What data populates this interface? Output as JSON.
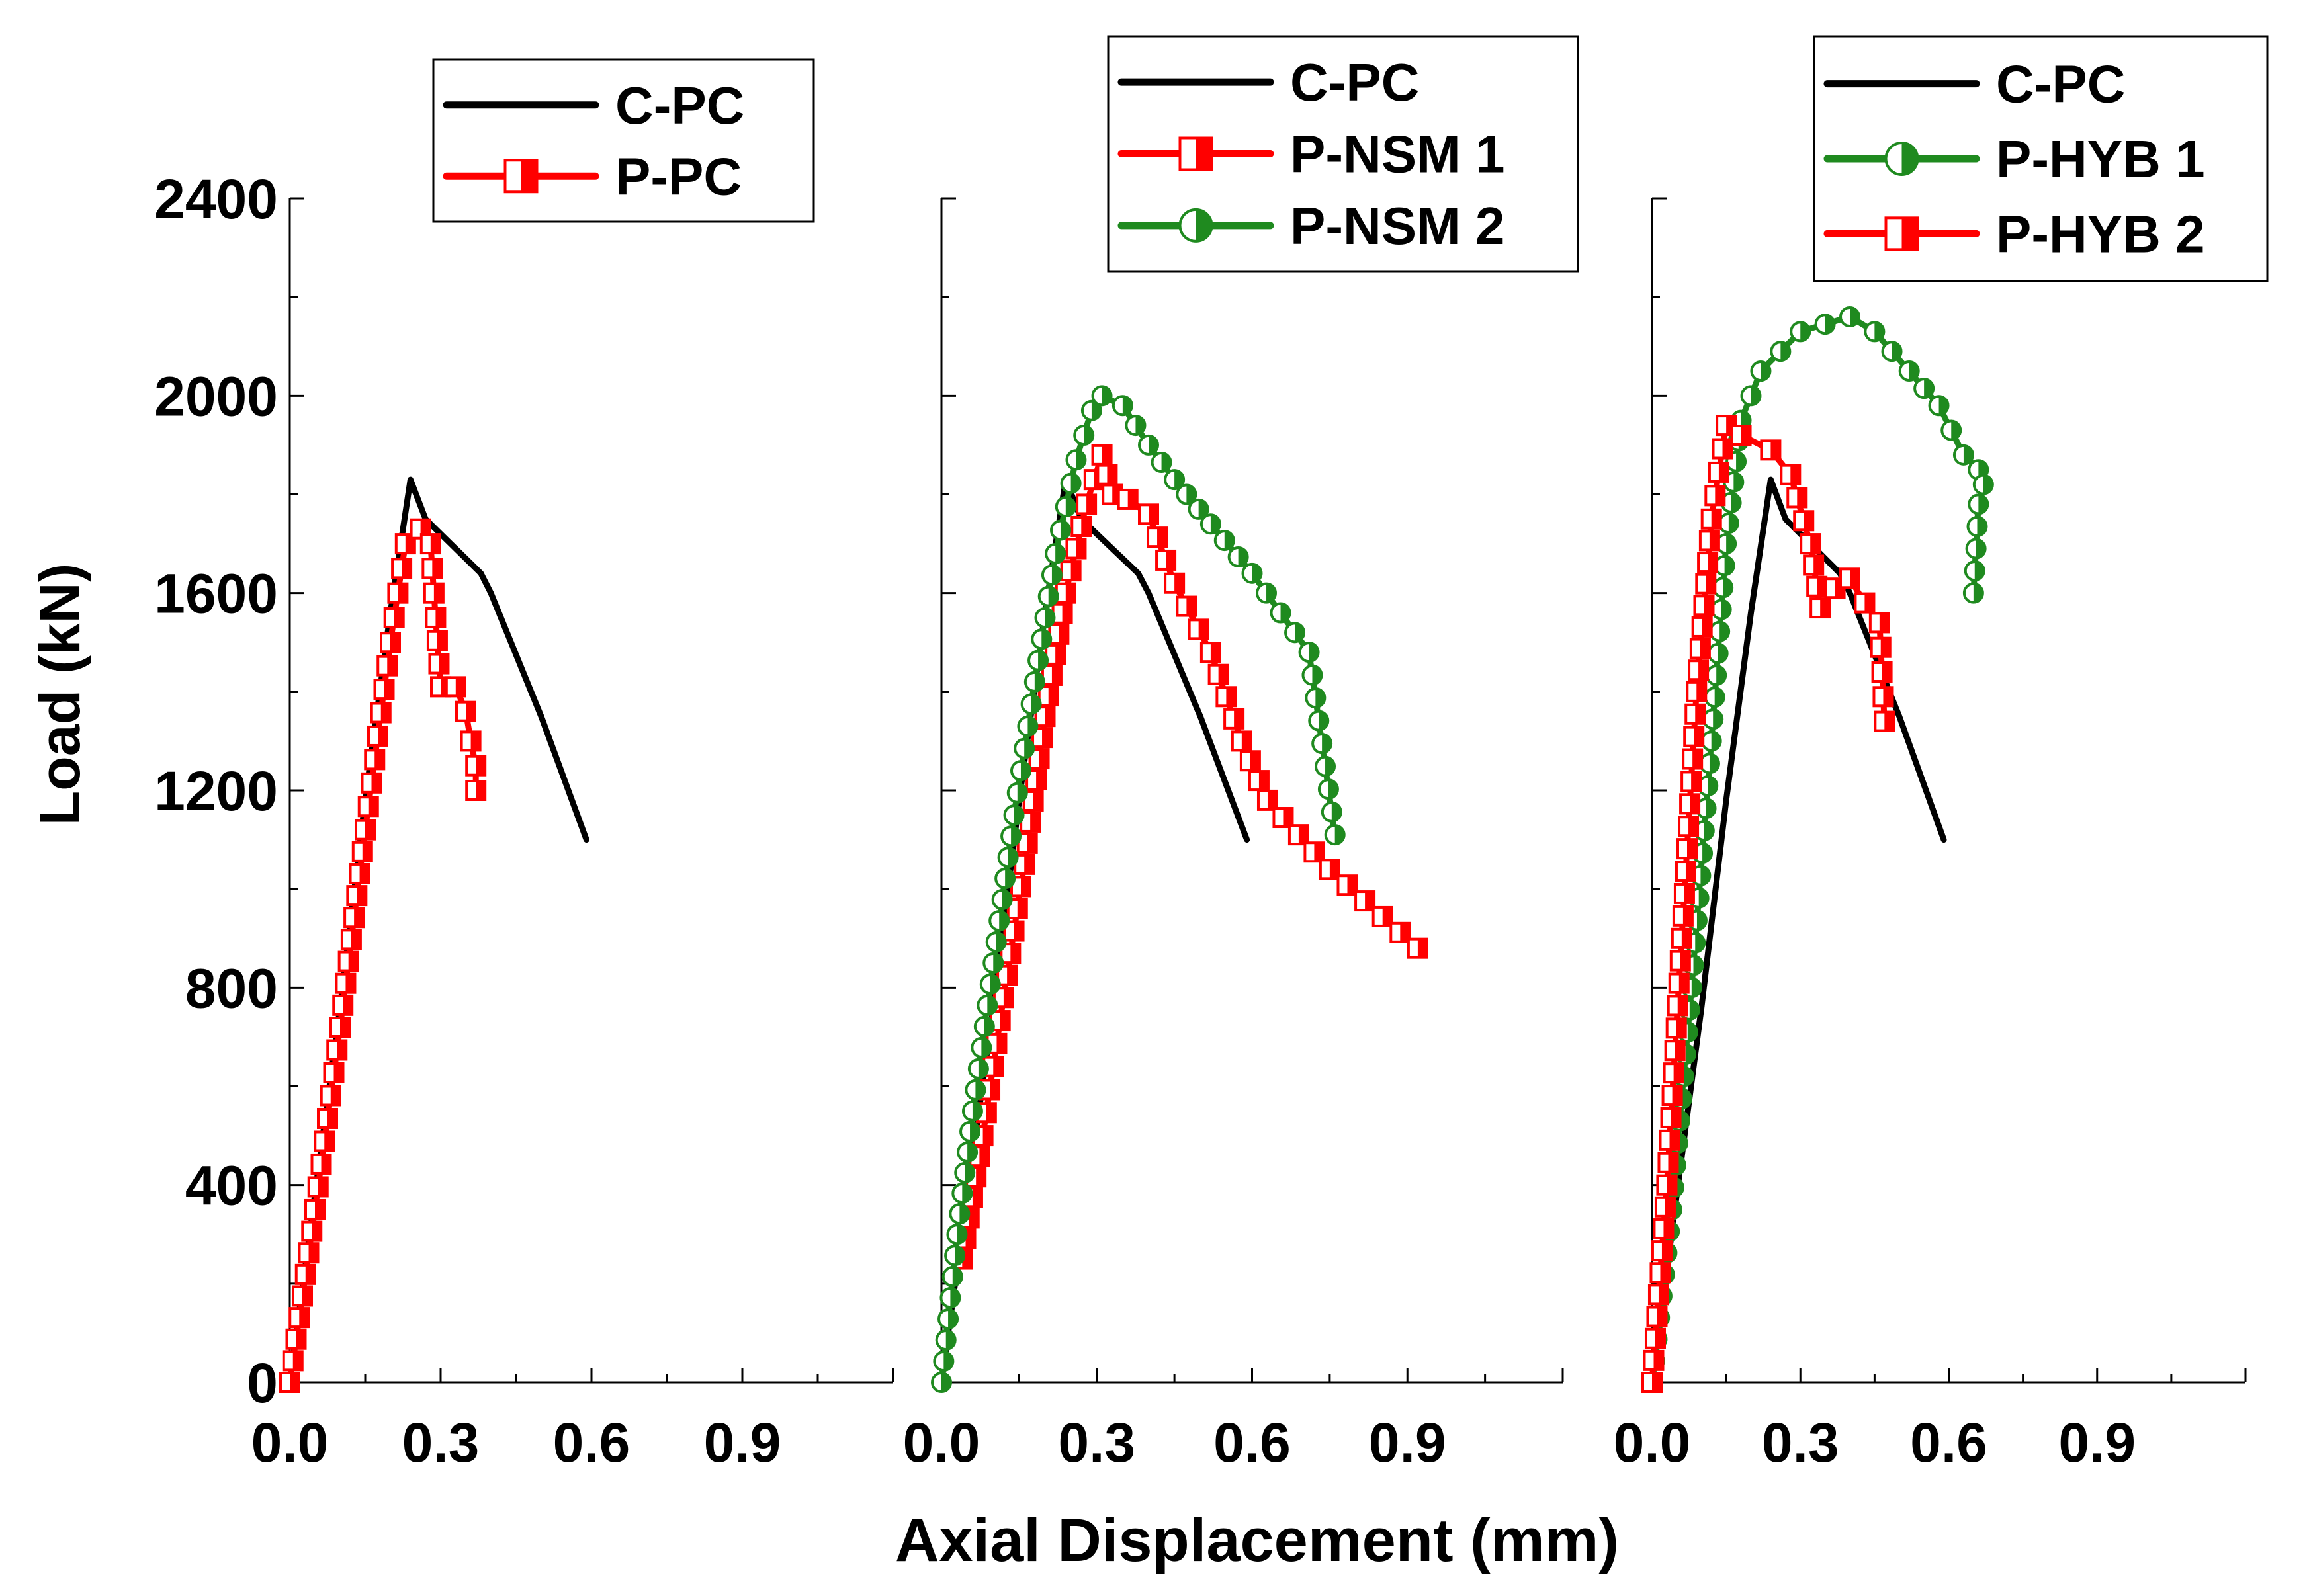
{
  "figure": {
    "ylabel": "Load (kN)",
    "xlabel": "Axial Displacement (mm)"
  },
  "colors": {
    "black": "#000000",
    "red": "#ff0000",
    "green": "#1f8a1f"
  },
  "chart_data": [
    {
      "type": "line",
      "xlim": [
        0,
        1.2
      ],
      "ylim": [
        0,
        2400
      ],
      "xticks": [
        "0.0",
        "0.3",
        "0.6",
        "0.9"
      ],
      "yticks": [
        "0",
        "400",
        "800",
        "1200",
        "1600",
        "2000",
        "2400"
      ],
      "series": [
        {
          "name": "C-PC",
          "color": "#000000",
          "marker": "none",
          "points": [
            [
              0.0,
              0
            ],
            [
              0.05,
              380
            ],
            [
              0.1,
              760
            ],
            [
              0.15,
              1180
            ],
            [
              0.2,
              1560
            ],
            [
              0.24,
              1830
            ],
            [
              0.27,
              1750
            ],
            [
              0.32,
              1700
            ],
            [
              0.38,
              1640
            ],
            [
              0.4,
              1600
            ],
            [
              0.5,
              1350
            ],
            [
              0.59,
              1100
            ]
          ]
        },
        {
          "name": "P-PC",
          "color": "#ff0000",
          "marker": "square",
          "points": [
            [
              0.0,
              0
            ],
            [
              0.05,
              350
            ],
            [
              0.1,
              720
            ],
            [
              0.15,
              1120
            ],
            [
              0.2,
              1500
            ],
            [
              0.23,
              1700
            ],
            [
              0.26,
              1730
            ],
            [
              0.28,
              1700
            ],
            [
              0.29,
              1550
            ],
            [
              0.3,
              1410
            ],
            [
              0.33,
              1410
            ],
            [
              0.35,
              1360
            ],
            [
              0.36,
              1300
            ],
            [
              0.37,
              1250
            ],
            [
              0.37,
              1200
            ]
          ]
        }
      ]
    },
    {
      "type": "line",
      "xlim": [
        0,
        1.2
      ],
      "ylim": [
        0,
        2400
      ],
      "xticks": [
        "0.0",
        "0.3",
        "0.6",
        "0.9"
      ],
      "yticks": [],
      "series": [
        {
          "name": "C-PC",
          "color": "#000000",
          "marker": "none",
          "points": [
            [
              0.0,
              0
            ],
            [
              0.05,
              380
            ],
            [
              0.1,
              760
            ],
            [
              0.15,
              1180
            ],
            [
              0.2,
              1560
            ],
            [
              0.24,
              1830
            ],
            [
              0.27,
              1750
            ],
            [
              0.32,
              1700
            ],
            [
              0.38,
              1640
            ],
            [
              0.4,
              1600
            ],
            [
              0.5,
              1350
            ],
            [
              0.59,
              1100
            ]
          ]
        },
        {
          "name": "P-NSM 1",
          "color": "#ff0000",
          "marker": "square",
          "points": [
            [
              0.04,
              250
            ],
            [
              0.08,
              500
            ],
            [
              0.12,
              780
            ],
            [
              0.16,
              1050
            ],
            [
              0.2,
              1350
            ],
            [
              0.24,
              1600
            ],
            [
              0.28,
              1780
            ],
            [
              0.31,
              1880
            ],
            [
              0.33,
              1800
            ],
            [
              0.36,
              1790
            ],
            [
              0.4,
              1760
            ],
            [
              0.45,
              1620
            ],
            [
              0.52,
              1480
            ],
            [
              0.58,
              1300
            ],
            [
              0.63,
              1180
            ],
            [
              0.75,
              1040
            ],
            [
              0.92,
              880
            ]
          ]
        },
        {
          "name": "P-NSM 2",
          "color": "#1f8a1f",
          "marker": "circle",
          "points": [
            [
              0.0,
              0
            ],
            [
              0.03,
              300
            ],
            [
              0.06,
              550
            ],
            [
              0.1,
              850
            ],
            [
              0.14,
              1150
            ],
            [
              0.18,
              1420
            ],
            [
              0.22,
              1680
            ],
            [
              0.26,
              1870
            ],
            [
              0.29,
              1970
            ],
            [
              0.31,
              2000
            ],
            [
              0.35,
              1980
            ],
            [
              0.4,
              1900
            ],
            [
              0.45,
              1830
            ],
            [
              0.52,
              1740
            ],
            [
              0.6,
              1640
            ],
            [
              0.71,
              1480
            ],
            [
              0.76,
              1110
            ]
          ]
        }
      ]
    },
    {
      "type": "line",
      "xlim": [
        0,
        1.2
      ],
      "ylim": [
        0,
        2400
      ],
      "xticks": [
        "0.0",
        "0.3",
        "0.6",
        "0.9"
      ],
      "yticks": [],
      "series": [
        {
          "name": "C-PC",
          "color": "#000000",
          "marker": "none",
          "points": [
            [
              0.0,
              0
            ],
            [
              0.05,
              380
            ],
            [
              0.1,
              760
            ],
            [
              0.15,
              1180
            ],
            [
              0.2,
              1560
            ],
            [
              0.24,
              1830
            ],
            [
              0.27,
              1750
            ],
            [
              0.32,
              1700
            ],
            [
              0.38,
              1640
            ],
            [
              0.4,
              1600
            ],
            [
              0.5,
              1350
            ],
            [
              0.59,
              1100
            ]
          ]
        },
        {
          "name": "P-HYB 1",
          "color": "#1f8a1f",
          "marker": "circle",
          "points": [
            [
              0.0,
              0
            ],
            [
              0.04,
              350
            ],
            [
              0.08,
              800
            ],
            [
              0.12,
              1300
            ],
            [
              0.15,
              1700
            ],
            [
              0.18,
              1950
            ],
            [
              0.22,
              2050
            ],
            [
              0.3,
              2130
            ],
            [
              0.4,
              2160
            ],
            [
              0.45,
              2130
            ],
            [
              0.52,
              2050
            ],
            [
              0.58,
              1980
            ],
            [
              0.63,
              1880
            ],
            [
              0.66,
              1850
            ],
            [
              0.67,
              1820
            ],
            [
              0.66,
              1780
            ],
            [
              0.65,
              1600
            ]
          ]
        },
        {
          "name": "P-HYB 2",
          "color": "#ff0000",
          "marker": "square",
          "points": [
            [
              0.0,
              0
            ],
            [
              0.03,
              400
            ],
            [
              0.06,
              900
            ],
            [
              0.09,
              1400
            ],
            [
              0.12,
              1750
            ],
            [
              0.15,
              1940
            ],
            [
              0.18,
              1920
            ],
            [
              0.24,
              1890
            ],
            [
              0.28,
              1840
            ],
            [
              0.32,
              1700
            ],
            [
              0.34,
              1570
            ],
            [
              0.37,
              1610
            ],
            [
              0.4,
              1630
            ],
            [
              0.43,
              1580
            ],
            [
              0.46,
              1540
            ],
            [
              0.47,
              1340
            ]
          ]
        }
      ]
    }
  ]
}
